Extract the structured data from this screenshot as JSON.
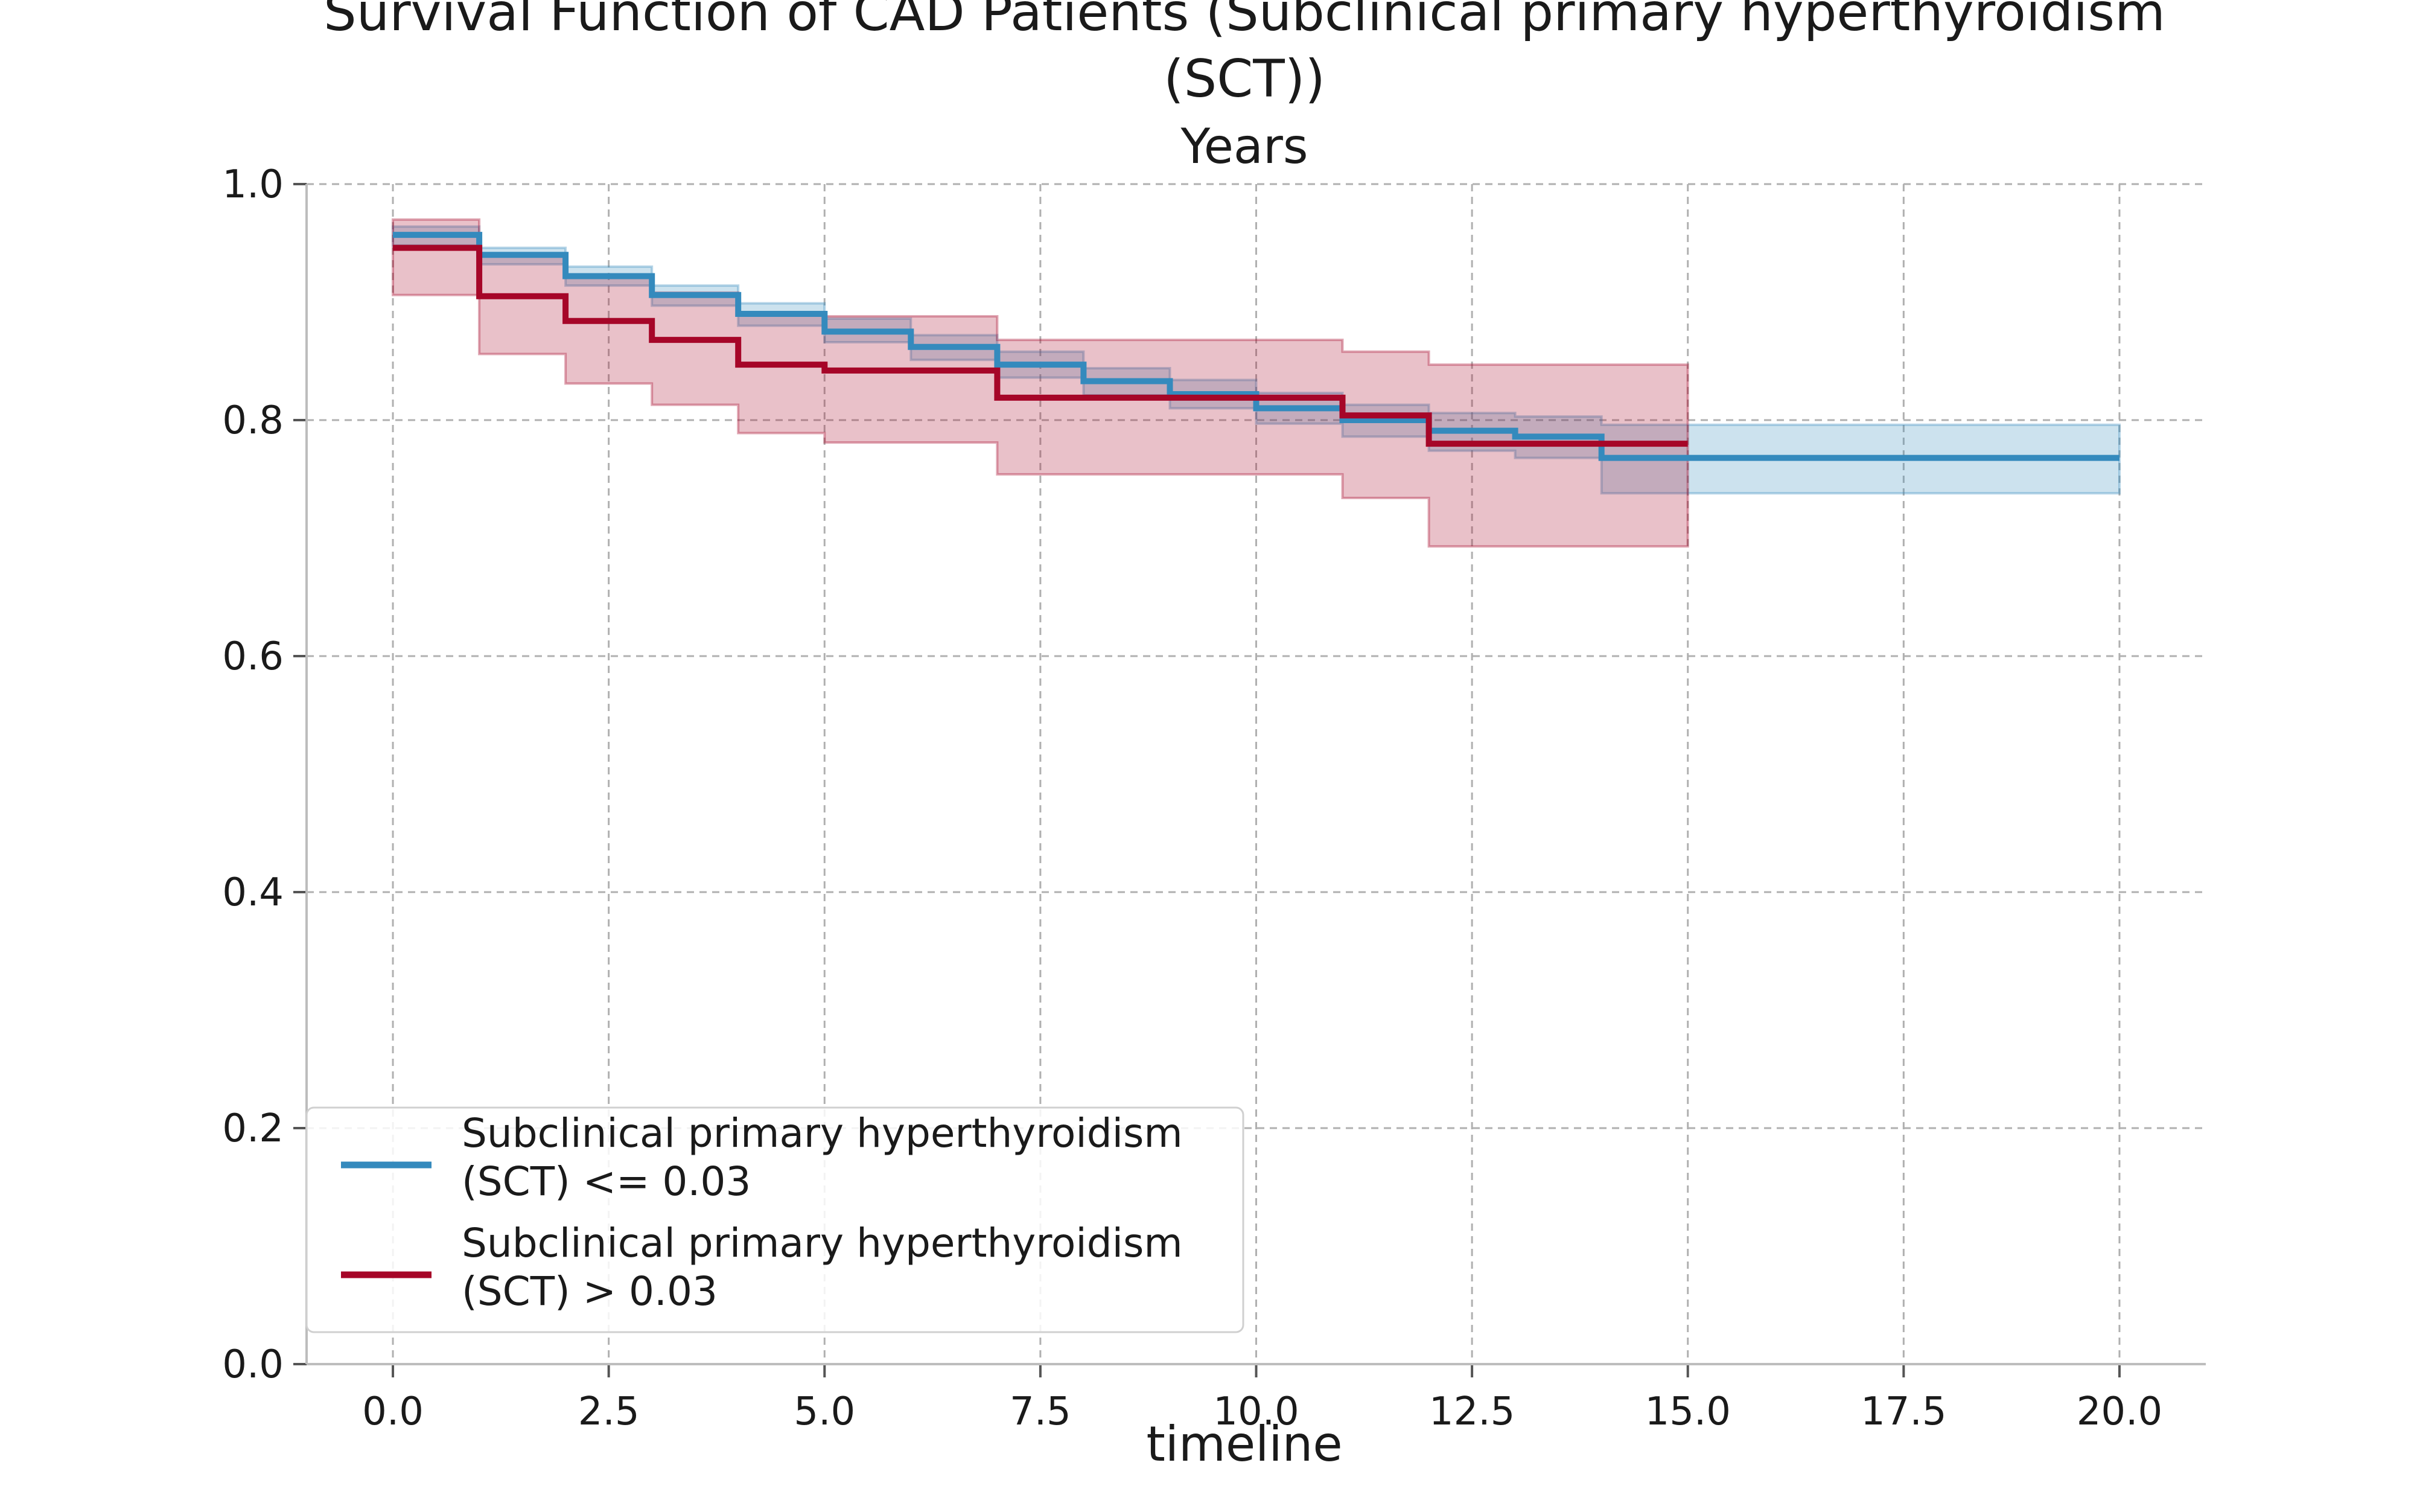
{
  "chart_data": {
    "type": "line",
    "title_lines": [
      "Survival Function of CAD Patients (Subclinical primary hyperthyroidism",
      "(SCT))"
    ],
    "subtitle": "Years",
    "xlabel": "timeline",
    "ylabel": "",
    "xlim": [
      -1.0,
      21.0
    ],
    "ylim": [
      0.0,
      1.0
    ],
    "xticks": [
      0.0,
      2.5,
      5.0,
      7.5,
      10.0,
      12.5,
      15.0,
      17.5,
      20.0
    ],
    "xtick_labels": [
      "0.0",
      "2.5",
      "5.0",
      "7.5",
      "10.0",
      "12.5",
      "15.0",
      "17.5",
      "20.0"
    ],
    "yticks": [
      0.0,
      0.2,
      0.4,
      0.6,
      0.8,
      1.0
    ],
    "ytick_labels": [
      "0.0",
      "0.2",
      "0.4",
      "0.6",
      "0.8",
      "1.0"
    ],
    "grid": true,
    "legend_position": "lower-left",
    "step": "post",
    "series": [
      {
        "name_lines": [
          "Subclinical primary hyperthyroidism",
          "(SCT) <= 0.03"
        ],
        "color": "#348ABD",
        "x": [
          0,
          1,
          2,
          3,
          4,
          5,
          6,
          7,
          8,
          9,
          10,
          11,
          12,
          13,
          14,
          20
        ],
        "y": [
          0.957,
          0.94,
          0.922,
          0.906,
          0.89,
          0.875,
          0.862,
          0.847,
          0.833,
          0.822,
          0.81,
          0.8,
          0.791,
          0.786,
          0.768,
          0.768
        ],
        "ci_lower": [
          0.948,
          0.932,
          0.914,
          0.897,
          0.88,
          0.866,
          0.851,
          0.836,
          0.821,
          0.81,
          0.797,
          0.786,
          0.774,
          0.768,
          0.738,
          0.738
        ],
        "ci_upper": [
          0.964,
          0.946,
          0.93,
          0.914,
          0.899,
          0.886,
          0.872,
          0.858,
          0.844,
          0.834,
          0.823,
          0.813,
          0.806,
          0.803,
          0.796,
          0.796
        ]
      },
      {
        "name_lines": [
          "Subclinical primary hyperthyroidism",
          "(SCT) > 0.03"
        ],
        "color": "#A60628",
        "x": [
          0,
          1,
          2,
          3,
          4,
          5,
          7,
          11,
          12,
          15
        ],
        "y": [
          0.946,
          0.905,
          0.884,
          0.868,
          0.847,
          0.842,
          0.819,
          0.804,
          0.78,
          0.78
        ],
        "ci_lower": [
          0.906,
          0.856,
          0.831,
          0.813,
          0.789,
          0.781,
          0.754,
          0.734,
          0.693,
          0.693
        ],
        "ci_upper": [
          0.97,
          0.939,
          0.921,
          0.908,
          0.891,
          0.888,
          0.868,
          0.858,
          0.847,
          0.847
        ]
      }
    ]
  }
}
